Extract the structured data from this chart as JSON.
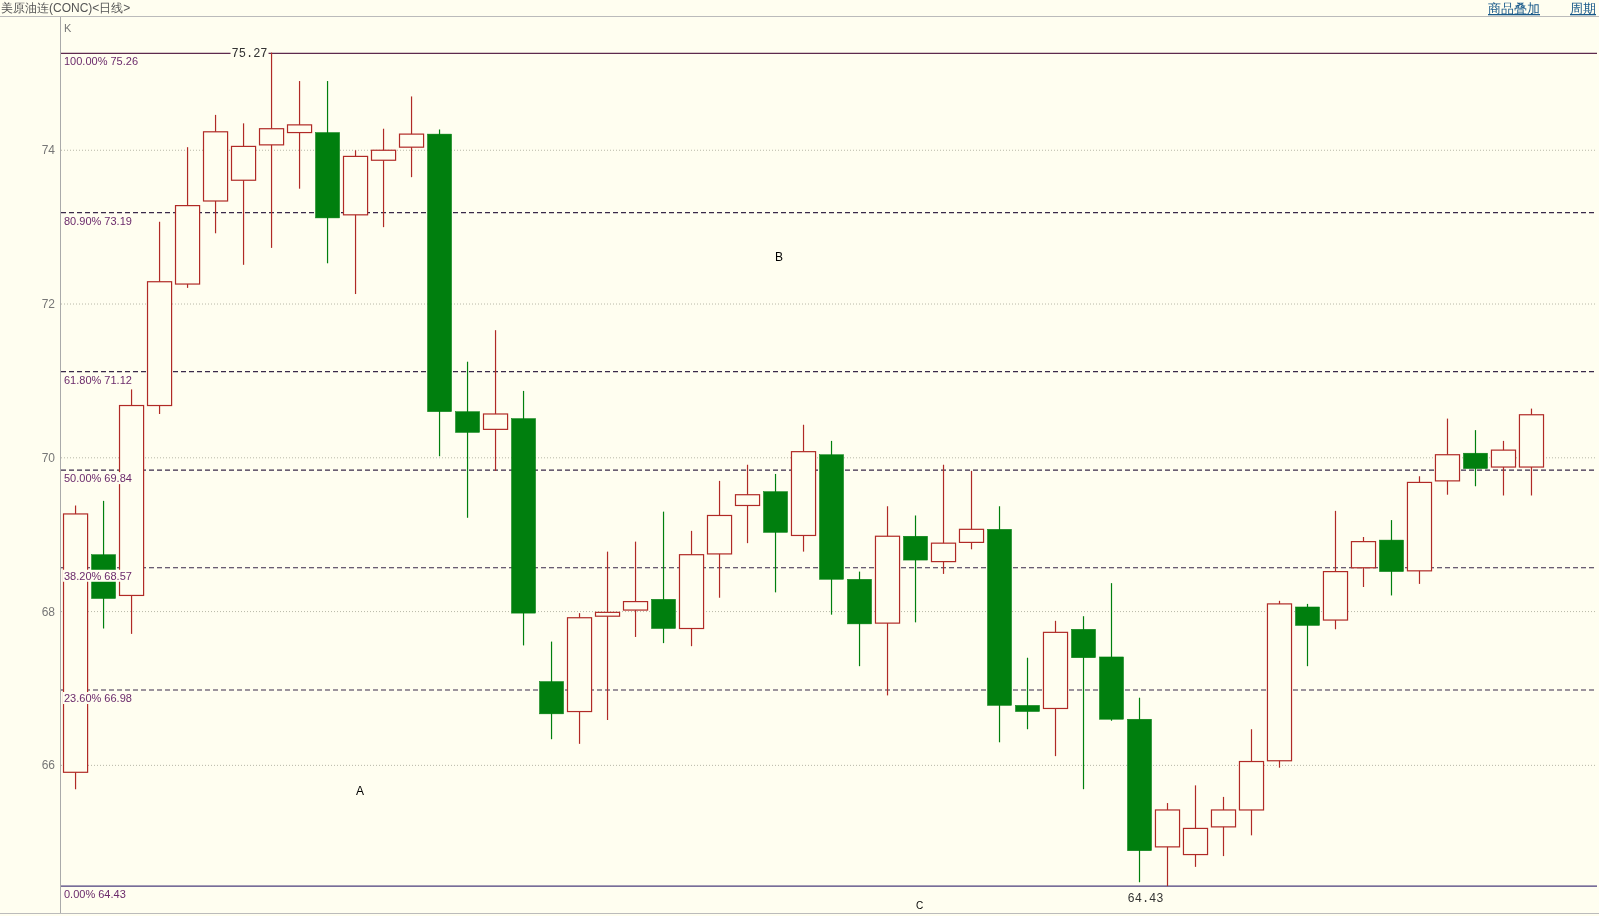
{
  "chart_data": {
    "type": "candlestick",
    "title": "美原油连(CONC)<日线>",
    "categories": [
      null,
      null,
      null,
      null,
      null,
      null,
      null,
      null,
      null,
      null,
      null,
      null,
      null,
      null,
      null,
      null,
      null,
      null,
      null,
      null,
      null,
      null,
      null,
      null,
      null,
      null,
      null,
      null,
      null,
      null,
      null,
      null,
      null,
      null,
      null,
      null,
      null,
      null,
      null,
      null,
      null,
      null,
      null,
      null,
      null,
      null,
      null,
      null,
      null,
      null,
      null,
      null,
      null
    ],
    "ohlc": [
      [
        65.91,
        69.38,
        65.69,
        69.27
      ],
      [
        68.74,
        69.44,
        67.78,
        68.17
      ],
      [
        68.21,
        70.89,
        67.71,
        70.68
      ],
      [
        70.68,
        73.07,
        70.57,
        72.29
      ],
      [
        72.26,
        74.04,
        72.21,
        73.28
      ],
      [
        73.34,
        74.46,
        72.92,
        74.24
      ],
      [
        73.61,
        74.35,
        72.51,
        74.05
      ],
      [
        74.07,
        75.27,
        72.73,
        74.28
      ],
      [
        74.23,
        74.9,
        73.5,
        74.33
      ],
      [
        74.23,
        74.9,
        72.53,
        73.12
      ],
      [
        73.16,
        74.0,
        72.13,
        73.92
      ],
      [
        73.87,
        74.28,
        73.0,
        74.0
      ],
      [
        74.04,
        74.7,
        73.65,
        74.21
      ],
      [
        74.21,
        74.27,
        70.02,
        70.6
      ],
      [
        70.6,
        71.25,
        69.22,
        70.33
      ],
      [
        70.37,
        71.66,
        69.83,
        70.57
      ],
      [
        70.51,
        70.87,
        67.56,
        67.98
      ],
      [
        67.09,
        67.61,
        66.34,
        66.67
      ],
      [
        66.7,
        67.98,
        66.28,
        67.92
      ],
      [
        67.94,
        68.78,
        66.59,
        67.99
      ],
      [
        68.02,
        68.91,
        67.67,
        68.13
      ],
      [
        68.16,
        69.3,
        67.59,
        67.78
      ],
      [
        67.78,
        69.05,
        67.55,
        68.74
      ],
      [
        68.75,
        69.7,
        68.18,
        69.25
      ],
      [
        69.38,
        69.91,
        68.89,
        69.52
      ],
      [
        69.56,
        69.79,
        68.25,
        69.03
      ],
      [
        68.99,
        70.43,
        68.78,
        70.08
      ],
      [
        70.04,
        70.22,
        67.96,
        68.42
      ],
      [
        68.42,
        68.52,
        67.29,
        67.84
      ],
      [
        67.85,
        69.37,
        66.91,
        68.98
      ],
      [
        68.98,
        69.25,
        67.86,
        68.67
      ],
      [
        68.65,
        69.91,
        68.49,
        68.89
      ],
      [
        68.9,
        69.83,
        68.81,
        69.07
      ],
      [
        69.07,
        69.37,
        66.3,
        66.78
      ],
      [
        66.78,
        67.4,
        66.47,
        66.7
      ],
      [
        66.74,
        67.88,
        66.12,
        67.73
      ],
      [
        67.77,
        67.94,
        65.69,
        67.4
      ],
      [
        67.41,
        68.37,
        66.58,
        66.6
      ],
      [
        66.6,
        66.88,
        64.48,
        64.89
      ],
      [
        64.94,
        65.51,
        64.43,
        65.42
      ],
      [
        64.84,
        65.74,
        64.68,
        65.18
      ],
      [
        65.2,
        65.59,
        64.82,
        65.42
      ],
      [
        65.42,
        66.47,
        65.09,
        66.05
      ],
      [
        66.06,
        68.14,
        65.97,
        68.1
      ],
      [
        68.06,
        68.1,
        67.29,
        67.82
      ],
      [
        67.89,
        69.31,
        67.77,
        68.52
      ],
      [
        68.57,
        68.97,
        68.32,
        68.91
      ],
      [
        68.93,
        69.19,
        68.21,
        68.52
      ],
      [
        68.53,
        69.76,
        68.36,
        69.68
      ],
      [
        69.7,
        70.51,
        69.52,
        70.04
      ],
      [
        70.06,
        70.36,
        69.63,
        69.86
      ],
      [
        69.88,
        70.22,
        69.51,
        70.1
      ],
      [
        69.88,
        70.64,
        69.51,
        70.56
      ]
    ],
    "colors": [
      "#b02a26",
      "#007f0e",
      "#b02a26",
      "#b02a26",
      "#b02a26",
      "#b02a26",
      "#b02a26",
      "#b02a26",
      "#b02a26",
      "#007f0e",
      "#b02a26",
      "#b02a26",
      "#b02a26",
      "#007f0e",
      "#007f0e",
      "#b02a26",
      "#007f0e",
      "#007f0e",
      "#b02a26",
      "#b02a26",
      "#b02a26",
      "#007f0e",
      "#b02a26",
      "#b02a26",
      "#b02a26",
      "#007f0e",
      "#b02a26",
      "#007f0e",
      "#007f0e",
      "#b02a26",
      "#007f0e",
      "#b02a26",
      "#b02a26",
      "#007f0e",
      "#007f0e",
      "#b02a26",
      "#007f0e",
      "#007f0e",
      "#007f0e",
      "#b02a26",
      "#b02a26",
      "#b02a26",
      "#b02a26",
      "#b02a26",
      "#007f0e",
      "#b02a26",
      "#b02a26",
      "#007f0e",
      "#b02a26",
      "#b02a26",
      "#007f0e",
      "#b02a26",
      "#b02a26"
    ],
    "ylim": [
      64.08,
      75.72
    ],
    "yticks": [
      66,
      68,
      70,
      72,
      74
    ],
    "grid": "y",
    "ref_lines": [
      {
        "axis": "y",
        "value": 75.26,
        "label": "100.00% 75.26",
        "color": "#5e2a4e",
        "line_style": "solid"
      },
      {
        "axis": "y",
        "value": 73.19,
        "label": "80.90% 73.19",
        "color": "#3a2a4a",
        "line_style": "dashed"
      },
      {
        "axis": "y",
        "value": 71.12,
        "label": "61.80% 71.12",
        "color": "#3a2a4a",
        "line_style": "dashed"
      },
      {
        "axis": "y",
        "value": 69.84,
        "label": "50.00% 69.84",
        "color": "#3a2a4a",
        "line_style": "dashed"
      },
      {
        "axis": "y",
        "value": 68.57,
        "label": "38.20% 68.57",
        "color": "#3a2a4a",
        "line_style": "dashed"
      },
      {
        "axis": "y",
        "value": 66.98,
        "label": "23.60% 66.98",
        "color": "#3a2a4a",
        "line_style": "dashed"
      },
      {
        "axis": "y",
        "value": 64.43,
        "label": "0.00% 64.43",
        "color": "#4b3c7d",
        "line_style": "solid"
      }
    ],
    "annotations": [
      "K",
      "A",
      "B",
      "C",
      "商品叠加",
      "周期",
      {
        "text": "75.27",
        "y": 75.27
      },
      {
        "text": "64.43",
        "y": 64.43
      }
    ]
  }
}
